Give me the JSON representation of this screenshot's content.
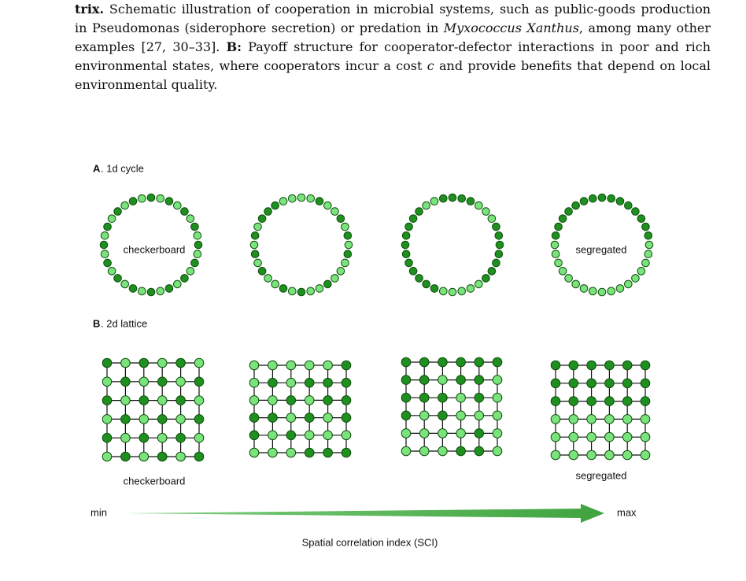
{
  "caption": {
    "runs": [
      {
        "text": "trix.",
        "style": "bold"
      },
      {
        "text": " Schematic illustration of cooperation in microbial systems, such as public-goods production in Pseudomonas (siderophore secretion) or predation in ",
        "style": "normal"
      },
      {
        "text": "Myxococcus Xanthus",
        "style": "italic"
      },
      {
        "text": ", among many other examples [27, 30–33]. ",
        "style": "normal"
      },
      {
        "text": "B:",
        "style": "bold"
      },
      {
        "text": " Payoff structure for cooperator-defector interactions in poor and rich environmental states, where cooperators incur a cost ",
        "style": "normal"
      },
      {
        "text": "c",
        "style": "italic"
      },
      {
        "text": " and provide benefits that depend on local environmental quality.",
        "style": "normal"
      }
    ]
  },
  "figure": {
    "panel_a": {
      "letter": "A",
      "title": ". 1d cycle",
      "left_label": "checkerboard",
      "right_label": "segregated"
    },
    "panel_b": {
      "letter": "B",
      "title": ". 2d lattice",
      "left_label": "checkerboard",
      "right_label": "segregated"
    },
    "axis": {
      "min_label": "min",
      "max_label": "max",
      "title": "Spatial correlation index (SCI)"
    }
  }
}
